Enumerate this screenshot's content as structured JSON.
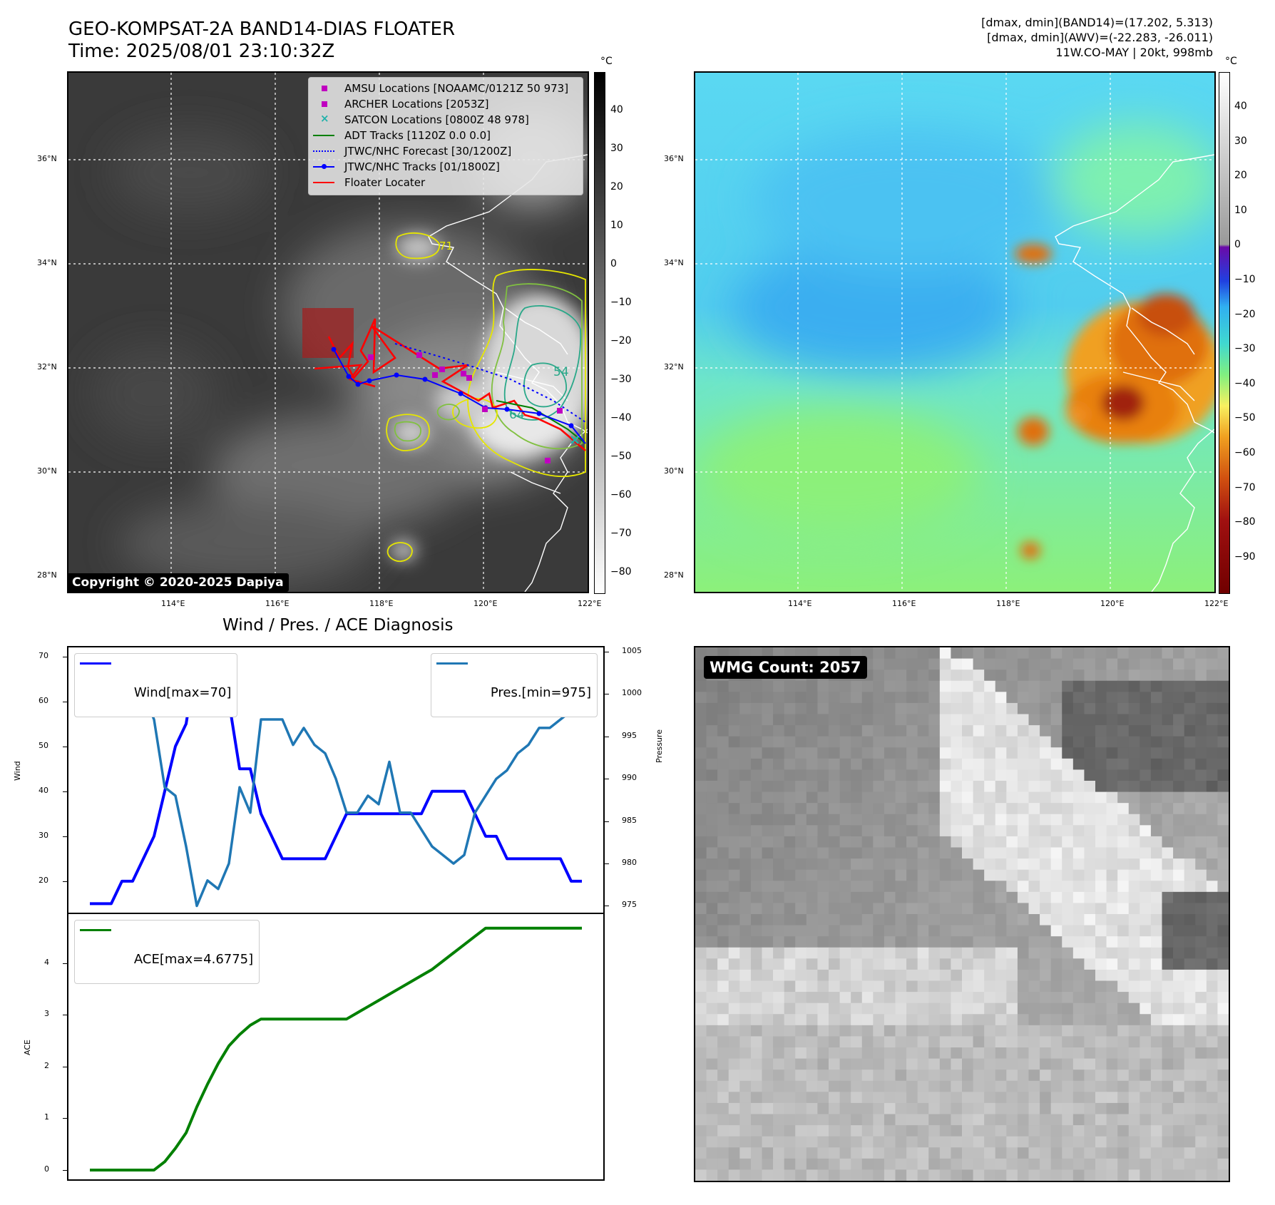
{
  "header": {
    "title_line1": "GEO-KOMPSAT-2A BAND14-DIAS FLOATER",
    "title_line2": "Time: 2025/08/01 23:10:32Z",
    "info_line1": "[dmax, dmin](BAND14)=(17.202, 5.313)",
    "info_line2": "[dmax, dmin](AWV)=(-22.283, -26.011)",
    "info_line3": "11W.CO-MAY | 20kt, 998mb"
  },
  "map": {
    "lon_ticks": [
      "114°E",
      "116°E",
      "118°E",
      "120°E",
      "122°E"
    ],
    "lat_ticks": [
      "36°N",
      "34°N",
      "32°N",
      "30°N",
      "28°N"
    ],
    "copyright": "Copyright © 2020-2025 Dapiya",
    "contour_labels": [
      "64",
      "54",
      "71"
    ]
  },
  "legend": {
    "items": [
      {
        "label": "AMSU Locations [NOAAMC/0121Z 50 973]",
        "color": "#c000c0",
        "marker": "square"
      },
      {
        "label": "ARCHER Locations [2053Z]",
        "color": "#c000c0",
        "marker": "square"
      },
      {
        "label": "SATCON Locations [0800Z 48 978]",
        "color": "#20b2aa",
        "marker": "x"
      },
      {
        "label": "ADT Tracks [1120Z 0.0 0.0]",
        "color": "#008000",
        "marker": "line"
      },
      {
        "label": "JTWC/NHC Forecast [30/1200Z]",
        "color": "#0000ff",
        "marker": "dotted"
      },
      {
        "label": "JTWC/NHC Tracks [01/1800Z]",
        "color": "#0000ff",
        "marker": "line-dot"
      },
      {
        "label": "Floater Locater",
        "color": "#ff0000",
        "marker": "line"
      }
    ]
  },
  "colorbar_ir": {
    "unit": "°C",
    "ticks": [
      "40",
      "30",
      "20",
      "10",
      "0",
      "−10",
      "−20",
      "−30",
      "−40",
      "−50",
      "−60",
      "−70",
      "−80"
    ]
  },
  "colorbar_wv": {
    "unit": "°C",
    "ticks": [
      "40",
      "30",
      "20",
      "10",
      "0",
      "−10",
      "−20",
      "−30",
      "−40",
      "−50",
      "−60",
      "−70",
      "−80",
      "−90"
    ]
  },
  "diag": {
    "title": "Wind / Pres. / ACE Diagnosis",
    "wind_legend": "Wind[max=70]",
    "pres_legend": "Pres.[min=975]",
    "ace_legend": "ACE[max=4.6775]",
    "wind_ylabel": "Wind",
    "pres_ylabel": "Pressure",
    "ace_ylabel": "ACE"
  },
  "wmg": {
    "label": "WMG Count: 2057"
  },
  "chart_data": [
    {
      "type": "line",
      "name": "wind-pressure",
      "x": [
        0,
        1,
        2,
        3,
        4,
        5,
        6,
        7,
        8,
        9,
        10,
        11,
        12,
        13,
        14,
        15,
        16,
        17,
        18,
        19,
        20,
        21,
        22,
        23,
        24,
        25,
        26,
        27,
        28,
        29,
        30,
        31,
        32,
        33,
        34,
        35,
        36,
        37,
        38,
        39,
        40,
        41,
        42,
        43,
        44,
        45,
        46
      ],
      "series": [
        {
          "name": "Wind",
          "axis": "left",
          "color": "#0000ff",
          "values": [
            15,
            15,
            15,
            20,
            20,
            25,
            30,
            40,
            50,
            55,
            70,
            65,
            65,
            60,
            45,
            45,
            35,
            30,
            25,
            25,
            25,
            25,
            25,
            30,
            35,
            35,
            35,
            35,
            35,
            35,
            35,
            35,
            40,
            40,
            40,
            40,
            35,
            30,
            30,
            25,
            25,
            25,
            25,
            25,
            25,
            20,
            20
          ]
        },
        {
          "name": "Pres.",
          "axis": "right",
          "color": "#1f77b4",
          "values": [
            1004,
            1004,
            1004,
            1004,
            1001,
            1000,
            997,
            989,
            988,
            982,
            975,
            978,
            977,
            980,
            989,
            986,
            997,
            997,
            997,
            994,
            996,
            994,
            993,
            990,
            986,
            986,
            988,
            987,
            992,
            986,
            986,
            984,
            982,
            981,
            980,
            981,
            986,
            988,
            990,
            991,
            993,
            994,
            996,
            996,
            997,
            998,
            998
          ]
        }
      ],
      "ylim_left": [
        13,
        72
      ],
      "yticks_left": [
        "20",
        "30",
        "40",
        "50",
        "60",
        "70"
      ],
      "ylim_right": [
        974.2,
        1005.5
      ],
      "yticks_right": [
        "975",
        "980",
        "985",
        "990",
        "995",
        "1000",
        "1005"
      ]
    },
    {
      "type": "line",
      "name": "ace",
      "x": [
        0,
        1,
        2,
        3,
        4,
        5,
        6,
        7,
        8,
        9,
        10,
        11,
        12,
        13,
        14,
        15,
        16,
        17,
        18,
        19,
        20,
        21,
        22,
        23,
        24,
        25,
        26,
        27,
        28,
        29,
        30,
        31,
        32,
        33,
        34,
        35,
        36,
        37,
        38,
        39,
        40,
        41,
        42,
        43,
        44,
        45,
        46
      ],
      "series": [
        {
          "name": "ACE",
          "color": "#008000",
          "values": [
            0,
            0,
            0,
            0,
            0,
            0,
            0,
            0.16,
            0.42,
            0.72,
            1.22,
            1.66,
            2.06,
            2.4,
            2.62,
            2.8,
            2.92,
            2.92,
            2.92,
            2.92,
            2.92,
            2.92,
            2.92,
            2.92,
            2.92,
            3.04,
            3.16,
            3.28,
            3.4,
            3.52,
            3.64,
            3.76,
            3.88,
            4.04,
            4.2,
            4.36,
            4.52,
            4.6775,
            4.6775,
            4.6775,
            4.6775,
            4.6775,
            4.6775,
            4.6775,
            4.6775,
            4.6775,
            4.6775
          ]
        }
      ],
      "ylim": [
        -0.18,
        4.95
      ],
      "yticks": [
        "0",
        "1",
        "2",
        "3",
        "4"
      ]
    }
  ]
}
